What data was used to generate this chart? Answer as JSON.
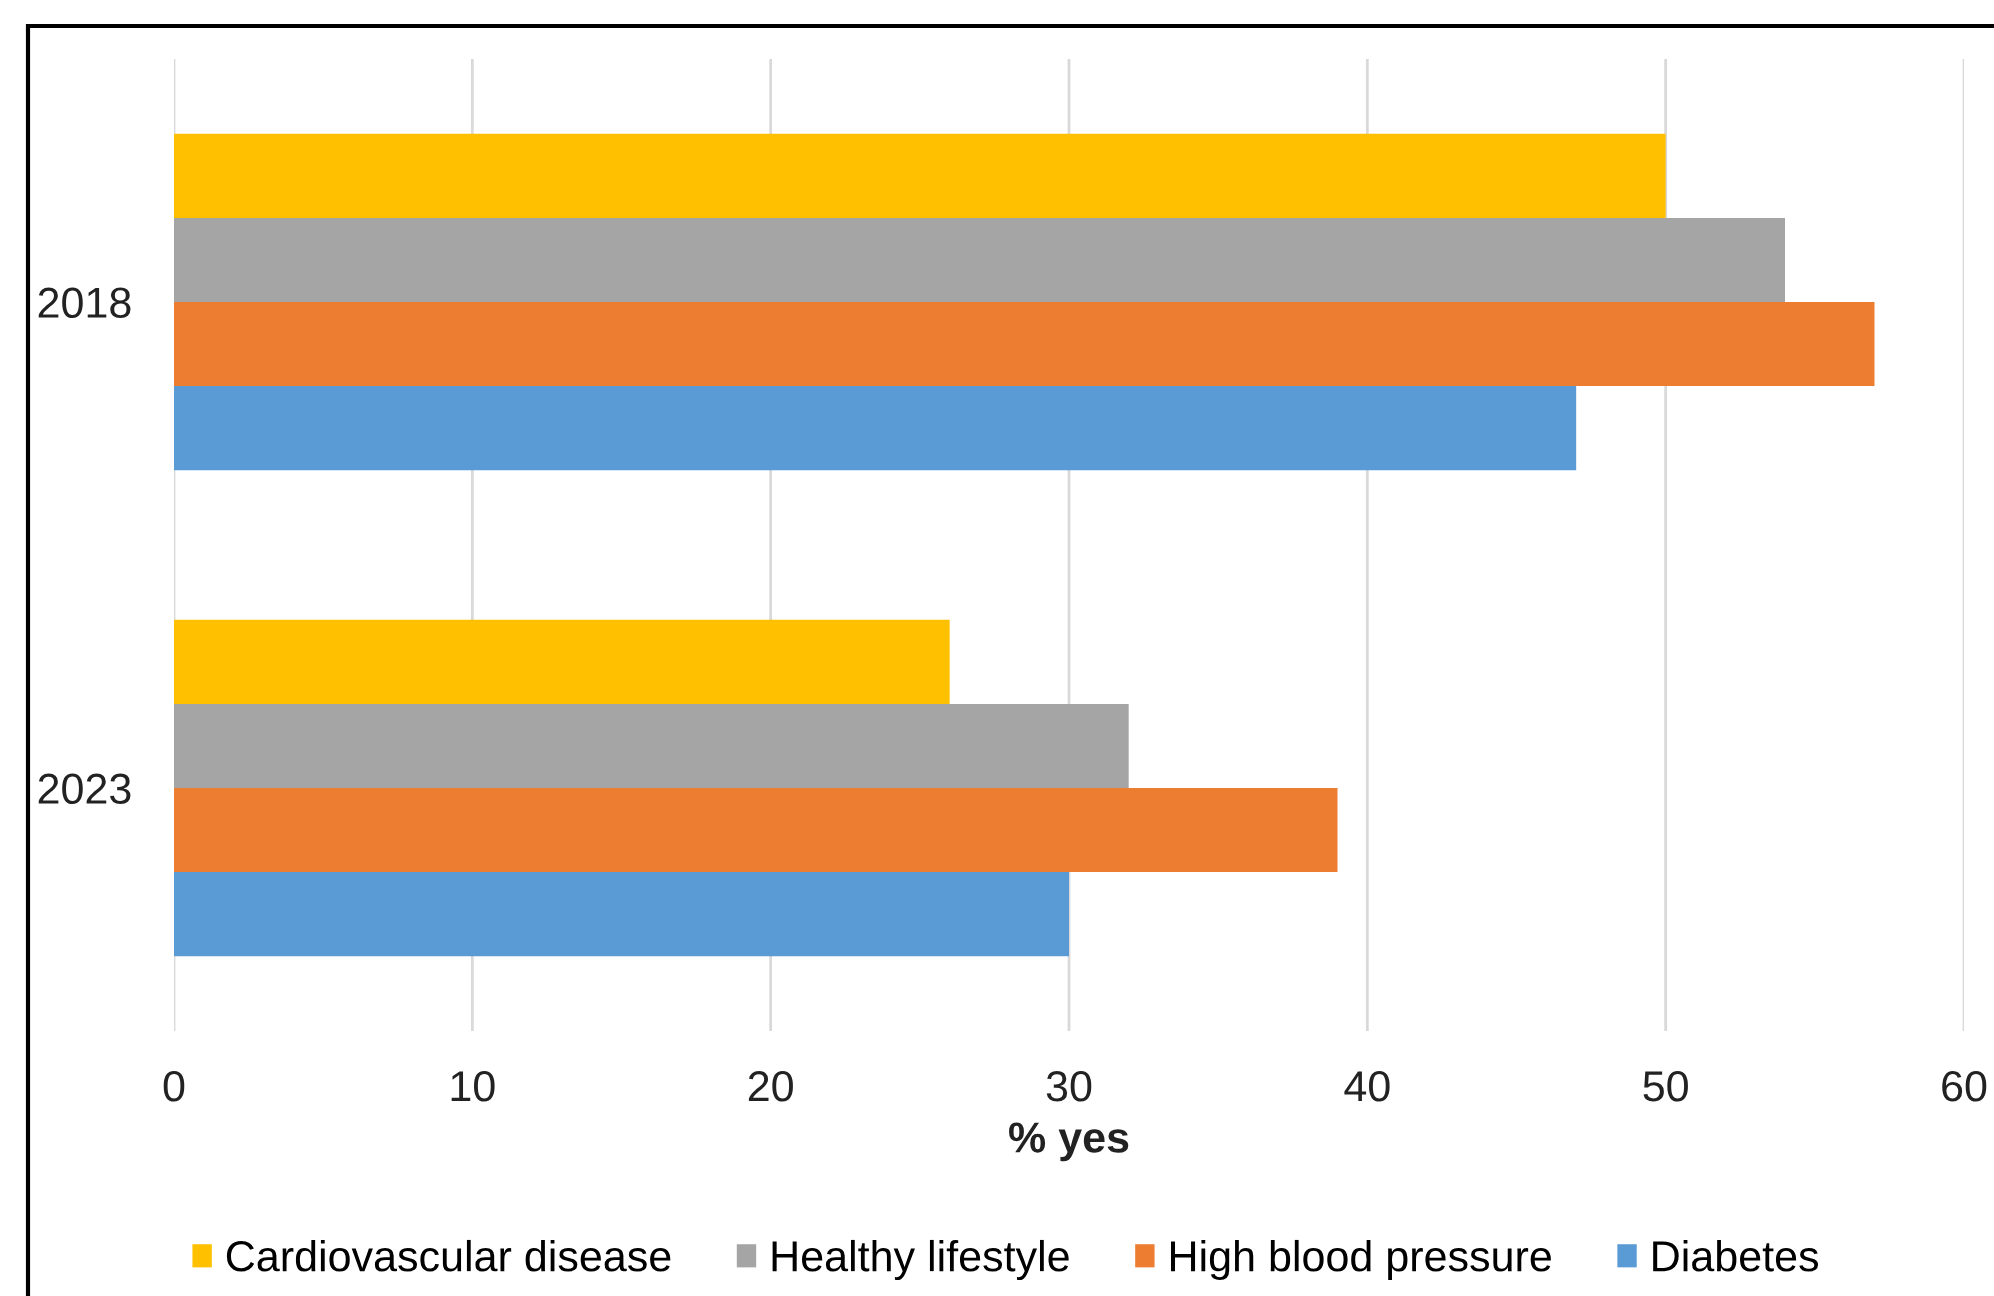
{
  "chart_data": {
    "type": "bar",
    "orientation": "horizontal",
    "categories": [
      "2018",
      "2023"
    ],
    "series": [
      {
        "name": "Cardiovascular disease",
        "color": "#ffc000",
        "values": [
          50,
          26
        ]
      },
      {
        "name": "Healthy lifestyle",
        "color": "#a5a5a5",
        "values": [
          54,
          32
        ]
      },
      {
        "name": "High blood pressure",
        "color": "#ed7d31",
        "values": [
          57,
          39
        ]
      },
      {
        "name": "Diabetes",
        "color": "#5b9bd5",
        "values": [
          47,
          30
        ]
      }
    ],
    "xlabel": "% yes",
    "xlim": [
      0,
      60
    ],
    "xticks": [
      0,
      10,
      20,
      30,
      40,
      50,
      60
    ],
    "grid": "x",
    "legend": "bottom"
  }
}
